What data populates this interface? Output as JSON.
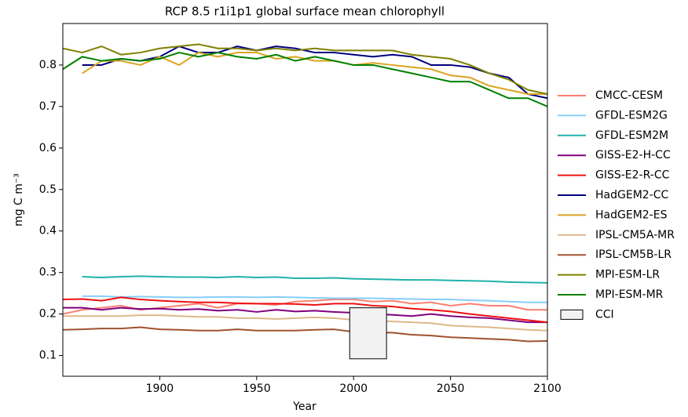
{
  "chart_data": {
    "type": "line",
    "title": "RCP 8.5 r1i1p1 global surface mean chlorophyll",
    "x_label": "Year",
    "y_label": "mg C m⁻³",
    "xlim": [
      1850,
      2100
    ],
    "xticks": [
      1900,
      1950,
      2000,
      2050,
      2100
    ],
    "ylim": [
      0.05,
      0.9
    ],
    "yticks": [
      0.1,
      0.2,
      0.3,
      0.4,
      0.5,
      0.6,
      0.7,
      0.8
    ],
    "grid": false,
    "legend": "outside right",
    "x": [
      1850,
      1860,
      1870,
      1880,
      1890,
      1900,
      1910,
      1920,
      1930,
      1940,
      1950,
      1960,
      1970,
      1980,
      1990,
      2000,
      2010,
      2020,
      2030,
      2040,
      2050,
      2060,
      2070,
      2080,
      2090,
      2100
    ],
    "series": [
      {
        "name": "CMCC-CESM",
        "color": "#fa8072",
        "values": [
          0.2,
          0.21,
          0.215,
          0.22,
          0.21,
          0.215,
          0.22,
          0.225,
          0.215,
          0.225,
          0.225,
          0.222,
          0.23,
          0.232,
          0.235,
          0.235,
          0.23,
          0.232,
          0.225,
          0.228,
          0.22,
          0.225,
          0.22,
          0.22,
          0.21,
          0.21
        ]
      },
      {
        "name": "GFDL-ESM2G",
        "color": "#87cefa",
        "values": [
          null,
          0.243,
          0.243,
          0.241,
          0.242,
          0.241,
          0.24,
          0.24,
          0.241,
          0.241,
          0.24,
          0.241,
          0.24,
          0.239,
          0.238,
          0.238,
          0.238,
          0.237,
          0.236,
          0.235,
          0.235,
          0.233,
          0.232,
          0.23,
          0.228,
          0.228
        ]
      },
      {
        "name": "GFDL-ESM2M",
        "color": "#20b2aa",
        "values": [
          null,
          0.29,
          0.288,
          0.29,
          0.291,
          0.29,
          0.289,
          0.289,
          0.288,
          0.29,
          0.288,
          0.289,
          0.286,
          0.286,
          0.287,
          0.285,
          0.284,
          0.283,
          0.282,
          0.282,
          0.281,
          0.28,
          0.279,
          0.277,
          0.276,
          0.275
        ]
      },
      {
        "name": "GISS-E2-H-CC",
        "color": "#800080",
        "values": [
          0.215,
          0.215,
          0.21,
          0.215,
          0.212,
          0.213,
          0.21,
          0.212,
          0.208,
          0.21,
          0.205,
          0.21,
          0.206,
          0.208,
          0.205,
          0.203,
          0.2,
          0.198,
          0.195,
          0.2,
          0.195,
          0.192,
          0.19,
          0.185,
          0.18,
          0.18
        ]
      },
      {
        "name": "GISS-E2-R-CC",
        "color": "#ee1111",
        "values": [
          0.235,
          0.236,
          0.232,
          0.24,
          0.235,
          0.232,
          0.23,
          0.228,
          0.228,
          0.226,
          0.225,
          0.225,
          0.224,
          0.222,
          0.225,
          0.225,
          0.22,
          0.218,
          0.213,
          0.21,
          0.206,
          0.2,
          0.195,
          0.19,
          0.185,
          0.18
        ]
      },
      {
        "name": "HadGEM2-CC",
        "color": "#000080",
        "values": [
          null,
          0.8,
          0.8,
          0.815,
          0.81,
          0.82,
          0.845,
          0.83,
          0.83,
          0.845,
          0.835,
          0.845,
          0.84,
          0.83,
          0.83,
          0.825,
          0.82,
          0.825,
          0.82,
          0.8,
          0.8,
          0.795,
          0.78,
          0.77,
          0.73,
          0.72
        ]
      },
      {
        "name": "HadGEM2-ES",
        "color": "#daa520",
        "values": [
          null,
          0.78,
          0.81,
          0.81,
          0.8,
          0.82,
          0.8,
          0.83,
          0.82,
          0.83,
          0.83,
          0.815,
          0.82,
          0.81,
          0.81,
          0.8,
          0.805,
          0.8,
          0.795,
          0.79,
          0.775,
          0.77,
          0.75,
          0.74,
          0.73,
          0.73
        ]
      },
      {
        "name": "IPSL-CM5A-MR",
        "color": "#deb887",
        "values": [
          0.195,
          0.195,
          0.195,
          0.195,
          0.197,
          0.197,
          0.195,
          0.193,
          0.193,
          0.19,
          0.19,
          0.188,
          0.19,
          0.192,
          0.19,
          0.186,
          0.185,
          0.182,
          0.18,
          0.178,
          0.172,
          0.17,
          0.168,
          0.165,
          0.162,
          0.16
        ]
      },
      {
        "name": "IPSL-CM5B-LR",
        "color": "#a0522d",
        "values": [
          0.162,
          0.163,
          0.165,
          0.165,
          0.168,
          0.163,
          0.162,
          0.16,
          0.16,
          0.163,
          0.16,
          0.16,
          0.16,
          0.162,
          0.163,
          0.157,
          0.155,
          0.155,
          0.15,
          0.148,
          0.144,
          0.142,
          0.14,
          0.138,
          0.134,
          0.135
        ]
      },
      {
        "name": "MPI-ESM-LR",
        "color": "#808000",
        "values": [
          0.84,
          0.83,
          0.845,
          0.825,
          0.83,
          0.84,
          0.845,
          0.85,
          0.84,
          0.84,
          0.835,
          0.84,
          0.835,
          0.84,
          0.835,
          0.835,
          0.835,
          0.835,
          0.825,
          0.82,
          0.815,
          0.8,
          0.78,
          0.765,
          0.74,
          0.73
        ]
      },
      {
        "name": "MPI-ESM-MR",
        "color": "#008000",
        "values": [
          0.79,
          0.82,
          0.81,
          0.815,
          0.81,
          0.815,
          0.83,
          0.82,
          0.83,
          0.82,
          0.815,
          0.825,
          0.81,
          0.82,
          0.81,
          0.8,
          0.8,
          0.79,
          0.78,
          0.77,
          0.76,
          0.76,
          0.74,
          0.72,
          0.72,
          0.7
        ]
      }
    ],
    "cci": {
      "name": "CCI",
      "color": "#f2f2f2",
      "x": [
        1998,
        2017
      ],
      "y": [
        0.092,
        0.215
      ]
    }
  }
}
